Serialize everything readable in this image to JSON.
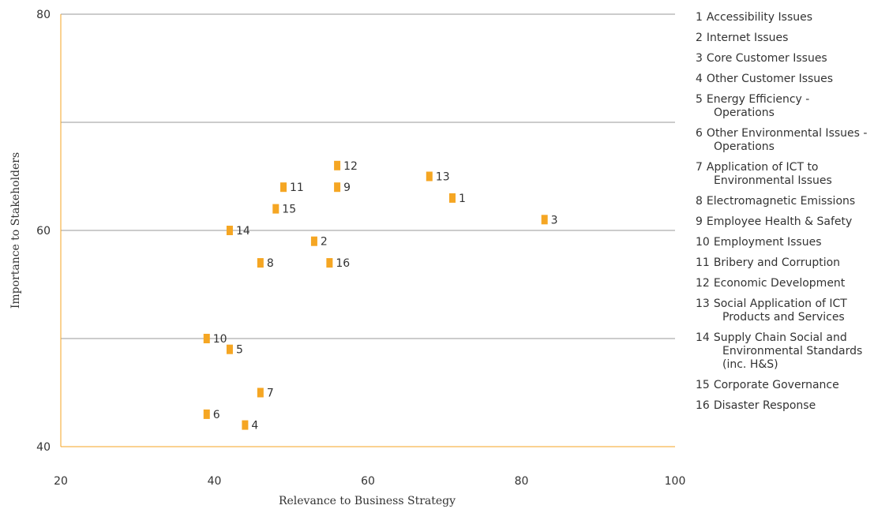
{
  "chart_data": {
    "type": "scatter",
    "xlabel": "Relevance to Business Strategy",
    "ylabel": "Importance to Stakeholders",
    "xlim": [
      20,
      100
    ],
    "ylim": [
      40,
      80
    ],
    "xticks": [
      "20",
      "40",
      "60",
      "80",
      "100"
    ],
    "yticks": [
      "40",
      "60",
      "80"
    ],
    "grid": "horizontal",
    "legend_placement": "right",
    "marker_color": "#f5a623",
    "axis_color": "#f5a623",
    "grid_color": "#999999",
    "points": [
      {
        "label": "1",
        "x": 71,
        "y": 63
      },
      {
        "label": "2",
        "x": 53,
        "y": 59
      },
      {
        "label": "3",
        "x": 83,
        "y": 61
      },
      {
        "label": "4",
        "x": 44,
        "y": 42
      },
      {
        "label": "5",
        "x": 42,
        "y": 49
      },
      {
        "label": "6",
        "x": 39,
        "y": 43
      },
      {
        "label": "7",
        "x": 46,
        "y": 45
      },
      {
        "label": "8",
        "x": 46,
        "y": 57
      },
      {
        "label": "9",
        "x": 56,
        "y": 64
      },
      {
        "label": "10",
        "x": 39,
        "y": 50
      },
      {
        "label": "11",
        "x": 49,
        "y": 64
      },
      {
        "label": "12",
        "x": 56,
        "y": 66
      },
      {
        "label": "13",
        "x": 68,
        "y": 65
      },
      {
        "label": "14",
        "x": 42,
        "y": 60
      },
      {
        "label": "15",
        "x": 48,
        "y": 62
      },
      {
        "label": "16",
        "x": 55,
        "y": 57
      }
    ]
  },
  "legend": [
    {
      "num": "1",
      "text": "Accessibility Issues"
    },
    {
      "num": "2",
      "text": "Internet Issues"
    },
    {
      "num": "3",
      "text": "Core Customer Issues"
    },
    {
      "num": "4",
      "text": "Other Customer Issues"
    },
    {
      "num": "5",
      "text": "Energy Efficiency - Operations"
    },
    {
      "num": "6",
      "text": "Other Environmental Issues - Operations"
    },
    {
      "num": "7",
      "text": "Application of ICT to Environmental Issues"
    },
    {
      "num": "8",
      "text": "Electromagnetic Emissions"
    },
    {
      "num": "9",
      "text": "Employee Health & Safety"
    },
    {
      "num": "10",
      "text": "Employment Issues"
    },
    {
      "num": "11",
      "text": "Bribery and Corruption"
    },
    {
      "num": "12",
      "text": "Economic Development"
    },
    {
      "num": "13",
      "text": "Social Application of ICT Products and Services"
    },
    {
      "num": "14",
      "text": "Supply Chain Social and Environmental Standards (inc. H&S)"
    },
    {
      "num": "15",
      "text": "Corporate Governance"
    },
    {
      "num": "16",
      "text": "Disaster Response"
    }
  ]
}
